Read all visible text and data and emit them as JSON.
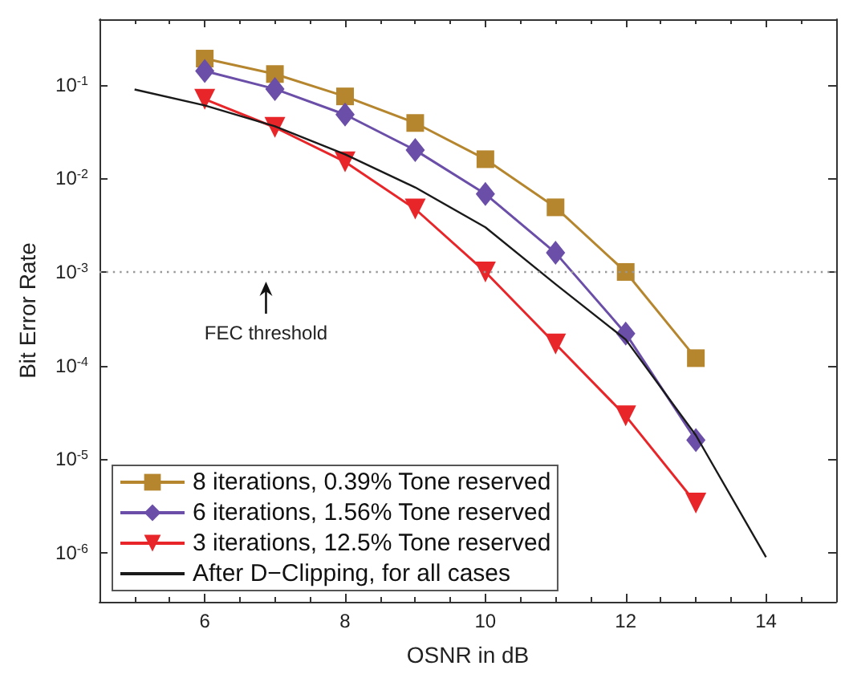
{
  "chart_data": {
    "type": "line",
    "xlabel": "OSNR in dB",
    "ylabel": "Bit Error Rate",
    "log": "y",
    "grid": false,
    "legend": "bottom left",
    "xlim": [
      4.5,
      15
    ],
    "xticks": [
      6,
      8,
      10,
      12,
      14
    ],
    "ylim": [
      3e-07,
      0.5
    ],
    "yticks": [
      {
        "value": 0.1,
        "label": "10$^{-1}$"
      },
      {
        "value": 0.01,
        "label": "10$^{-2}$"
      },
      {
        "value": 0.001,
        "label": "10$^{-3}$"
      },
      {
        "value": 0.0001,
        "label": "10$^{-4}$"
      },
      {
        "value": 1e-05,
        "label": "10$^{-5}$"
      },
      {
        "value": 1e-06,
        "label": "10$^{-6}$"
      }
    ],
    "x": [
      6,
      7,
      8,
      9,
      10,
      11,
      12,
      13
    ],
    "series": [
      {
        "name": "8 iterations, 0.39% Tone reserved",
        "color": "#b5862e",
        "marker": "square",
        "values": [
          0.19,
          0.13,
          0.075,
          0.039,
          0.016,
          0.0049,
          0.001,
          0.00012
        ]
      },
      {
        "name": "6 iterations, 1.56% Tone reserved",
        "color": "#6a4ea8",
        "marker": "diamond",
        "values": [
          0.14,
          0.09,
          0.048,
          0.02,
          0.0068,
          0.0016,
          0.00022,
          1.6e-05
        ]
      },
      {
        "name": "3 iterations, 12.5% Tone reserved",
        "color": "#e8262a",
        "marker": "triangle",
        "values": [
          0.07,
          0.035,
          0.015,
          0.0047,
          0.001,
          0.00017,
          2.9e-05,
          3.4e-06
        ]
      },
      {
        "name": "After D−Clipping, for all cases",
        "color": "#1a1a1a",
        "marker": "none",
        "x": [
          5,
          6,
          7,
          8,
          9,
          10,
          11,
          12,
          13,
          14
        ],
        "values": [
          0.089,
          0.06,
          0.036,
          0.018,
          0.008,
          0.003,
          0.00074,
          0.00019,
          1.8e-05,
          9e-07
        ]
      }
    ],
    "ref_lines": [
      {
        "axis": "y",
        "value": 0.001,
        "label": "FEC threshold",
        "color": "#999999",
        "line_style": "dotted"
      }
    ]
  }
}
